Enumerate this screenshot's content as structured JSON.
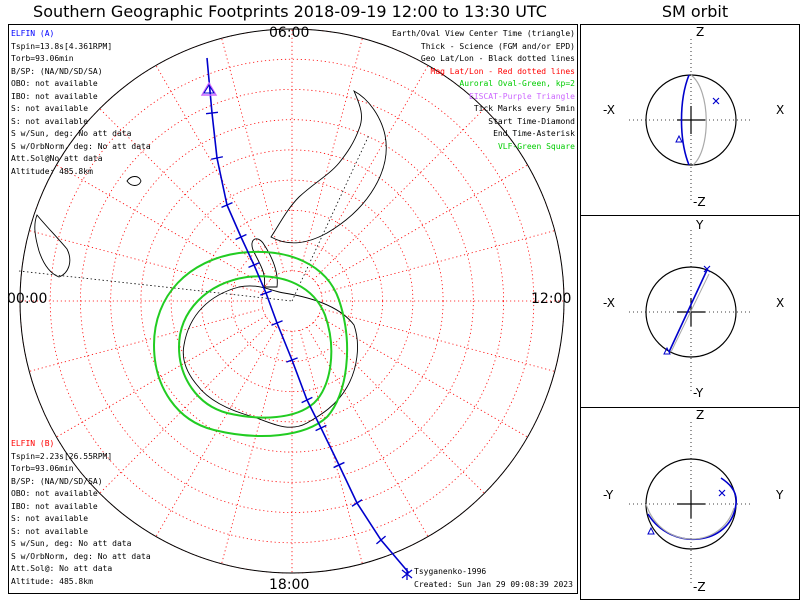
{
  "title": "Southern Geographic Footprints 2018-09-19 12:00 to 13:30 UTC",
  "sm_title": "SM orbit",
  "lt_labels": {
    "top": "06:00",
    "right": "12:00",
    "bottom": "18:00",
    "left": "00:00"
  },
  "elfin_a": {
    "name": "ELFIN (A)",
    "color": "#0000ff",
    "lines": [
      "Tspin=13.8s[4.361RPM]",
      "Torb=93.06min",
      "B/SP: (NA/ND/SD/SA)",
      "OBO: not available",
      "IBO: not available",
      "S: not available",
      "S: not available",
      "S w/Sun, deg: No att data",
      "S w/OrbNorm, deg: No att data",
      "Att.Sol@No att data",
      "Altitude: 485.8km"
    ]
  },
  "elfin_b": {
    "name": "ELFIN (B)",
    "color": "#ff0000",
    "lines": [
      "Tspin=2.23s[26.55RPM]",
      "Torb=93.06min",
      "B/SP: (NA/ND/SD/SA)",
      "OBO: not available",
      "IBO: not available",
      "S: not available",
      "S: not available",
      "S w/Sun, deg: No att data",
      "S w/OrbNorm, deg: No att data",
      "Att.Sol@: No att data",
      "Altitude: 485.8km"
    ]
  },
  "legend": [
    {
      "text": "Earth/Oval View Center Time (triangle)",
      "color": "#000000"
    },
    {
      "text": "Thick - Science (FGM and/or EPD)",
      "color": "#000000"
    },
    {
      "text": "Geo Lat/Lon - Black dotted lines",
      "color": "#000000"
    },
    {
      "text": "Mag Lat/Lon - Red dotted lines",
      "color": "#ff0000"
    },
    {
      "text": "Auroral Oval-Green, kp=2",
      "color": "#00cc00"
    },
    {
      "text": "EISCAT-Purple Triangle",
      "color": "#cc66ff"
    },
    {
      "text": "Tick Marks every 5min",
      "color": "#000000"
    },
    {
      "text": "Start Time-Diamond",
      "color": "#000000"
    },
    {
      "text": "End Time-Asterisk",
      "color": "#000000"
    },
    {
      "text": "VLF-Green Square",
      "color": "#00cc00"
    }
  ],
  "footer": {
    "model": "Tsyganenko-1996",
    "created": "Created: Sun Jan 29 09:08:39 2023"
  },
  "sm_panels": [
    {
      "top": "Z",
      "bottom": "-Z",
      "left": "-X",
      "right": "X"
    },
    {
      "top": "Y",
      "bottom": "-Y",
      "left": "-X",
      "right": "X"
    },
    {
      "top": "Z",
      "bottom": "-Z",
      "left": "-Y",
      "right": "Y"
    }
  ],
  "colors": {
    "track": "#0000cc",
    "mag_grid": "#ff0000",
    "oval": "#22cc22",
    "eiscat": "#cc66ff",
    "coast": "#000000",
    "gray_orbit": "#aaaaaa"
  },
  "chart_data": {
    "type": "polar-map",
    "title": "Southern Geographic Footprints 2018-09-19 12:00 to 13:30 UTC",
    "projection": "south-polar",
    "mag_local_time_labels": [
      "00:00",
      "06:00",
      "12:00",
      "18:00"
    ],
    "mag_grid": {
      "color": "red",
      "style": "dotted",
      "lat_step_deg": 10,
      "lon_step_deg": 15
    },
    "tick_interval_min": 5,
    "series": [
      {
        "name": "ELFIN (A)",
        "kind": "footprint-track"
      },
      {
        "name": "Auroral Oval-Green, kp=2",
        "kind": "oval"
      }
    ]
  }
}
